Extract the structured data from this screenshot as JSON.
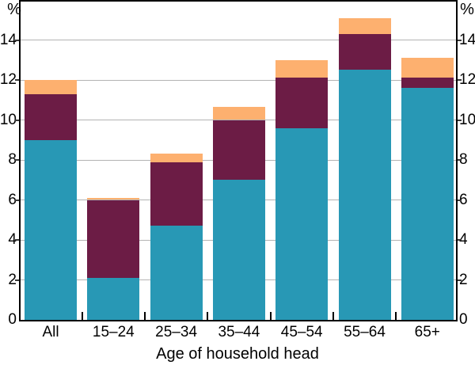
{
  "chart_data": {
    "type": "bar",
    "stacked": true,
    "title": "",
    "xlabel": "Age of household head",
    "ylabel_left": "%",
    "ylabel_right": "%",
    "ylim": [
      0,
      16
    ],
    "ytick_step": 2,
    "ytick_labels": [
      "0",
      "2",
      "4",
      "6",
      "8",
      "10",
      "12",
      "14"
    ],
    "grid": true,
    "legend": "none",
    "categories": [
      "All",
      "15–24",
      "25–34",
      "35–44",
      "45–54",
      "55–64",
      "65+"
    ],
    "series": [
      {
        "name": "bottom-teal-segment",
        "color": "#2898b5",
        "values": [
          9.0,
          2.1,
          4.7,
          7.0,
          9.6,
          12.5,
          11.6
        ]
      },
      {
        "name": "middle-maroon-segment",
        "color": "#6c1c45",
        "values": [
          2.3,
          3.9,
          3.2,
          3.0,
          2.5,
          1.8,
          0.5
        ]
      },
      {
        "name": "top-orange-segment",
        "color": "#fdb06f",
        "values": [
          0.7,
          0.1,
          0.4,
          0.65,
          0.9,
          0.8,
          1.0
        ]
      }
    ],
    "stack_tops": {
      "teal": [
        9.0,
        2.1,
        4.7,
        7.0,
        9.6,
        12.5,
        11.6
      ],
      "maroon": [
        11.3,
        6.0,
        7.9,
        10.0,
        12.1,
        14.3,
        12.1
      ],
      "orange": [
        12.0,
        6.1,
        8.3,
        10.65,
        13.0,
        15.1,
        13.1
      ]
    },
    "colors": {
      "grid": "#b3b3b3",
      "axis": "#000000",
      "text": "#000000",
      "background": "#ffffff"
    }
  }
}
